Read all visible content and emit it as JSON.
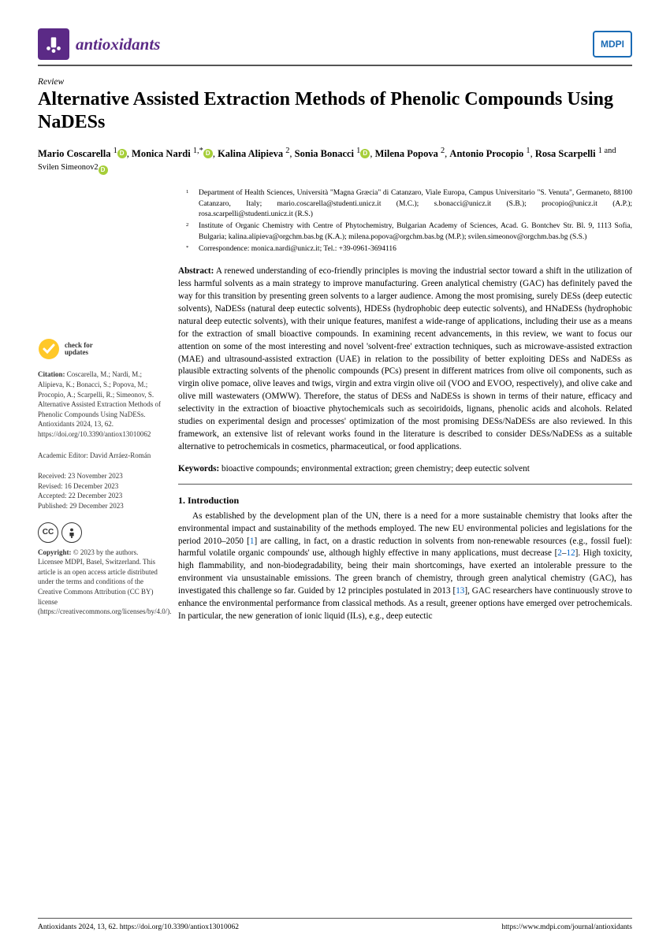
{
  "journal": "antioxidants",
  "publisher_logo": "MDPI",
  "article_type": "Review",
  "title": "Alternative Assisted Extraction Methods of Phenolic Compounds Using NaDESs",
  "authors_html": "Mario Coscarella|1|orcid|, Monica Nardi|1,*|orcid|, Kalina Alipieva|2|, Sonia Bonacci|1|orcid|, Milena Popova|2|, Antonio Procopio|1|, Rosa Scarpelli|1| and Svilen Simeonov|2|orcid",
  "affiliations": [
    {
      "sup": "1",
      "text": "Department of Health Sciences, Università \"Magna Græcia\" di Catanzaro, Viale Europa, Campus Universitario \"S. Venuta\", Germaneto, 88100 Catanzaro, Italy; mario.coscarella@studenti.unicz.it (M.C.); s.bonacci@unicz.it (S.B.); procopio@unicz.it (A.P.); rosa.scarpelli@studenti.unicz.it (R.S.)"
    },
    {
      "sup": "2",
      "text": "Institute of Organic Chemistry with Centre of Phytochemistry, Bulgarian Academy of Sciences, Acad. G. Bontchev Str. Bl. 9, 1113 Sofia, Bulgaria; kalina.alipieva@orgchm.bas.bg (K.A.); milena.popova@orgchm.bas.bg (M.P.); svilen.simeonov@orgchm.bas.bg (S.S.)"
    },
    {
      "sup": "*",
      "text": "Correspondence: monica.nardi@unicz.it; Tel.: +39-0961-3694116"
    }
  ],
  "abstract_label": "Abstract:",
  "abstract": "A renewed understanding of eco-friendly principles is moving the industrial sector toward a shift in the utilization of less harmful solvents as a main strategy to improve manufacturing. Green analytical chemistry (GAC) has definitely paved the way for this transition by presenting green solvents to a larger audience. Among the most promising, surely DESs (deep eutectic solvents), NaDESs (natural deep eutectic solvents), HDESs (hydrophobic deep eutectic solvents), and HNaDESs (hydrophobic natural deep eutectic solvents), with their unique features, manifest a wide-range of applications, including their use as a means for the extraction of small bioactive compounds. In examining recent advancements, in this review, we want to focus our attention on some of the most interesting and novel 'solvent-free' extraction techniques, such as microwave-assisted extraction (MAE) and ultrasound-assisted extraction (UAE) in relation to the possibility of better exploiting DESs and NaDESs as plausible extracting solvents of the phenolic compounds (PCs) present in different matrices from olive oil components, such as virgin olive pomace, olive leaves and twigs, virgin and extra virgin olive oil (VOO and EVOO, respectively), and olive cake and olive mill wastewaters (OMWW). Therefore, the status of DESs and NaDESs is shown in terms of their nature, efficacy and selectivity in the extraction of bioactive phytochemicals such as secoiridoids, lignans, phenolic acids and alcohols. Related studies on experimental design and processes' optimization of the most promising DESs/NaDESs are also reviewed. In this framework, an extensive list of relevant works found in the literature is described to consider DESs/NaDESs as a suitable alternative to petrochemicals in cosmetics, pharmaceutical, or food applications.",
  "keywords_label": "Keywords:",
  "keywords": "bioactive compounds; environmental extraction; green chemistry; deep eutectic solvent",
  "check_updates_line1": "check for",
  "check_updates_line2": "updates",
  "citation_label": "Citation:",
  "citation": "Coscarella, M.; Nardi, M.; Alipieva, K.; Bonacci, S.; Popova, M.; Procopio, A.; Scarpelli, R.; Simeonov, S. Alternative Assisted Extraction Methods of Phenolic Compounds Using NaDESs. Antioxidants 2024, 13, 62. https://doi.org/10.3390/antiox13010062",
  "editor_label": "Academic Editor:",
  "editor": "David Arráez-Román",
  "received": "Received: 23 November 2023",
  "revised": "Revised: 16 December 2023",
  "accepted": "Accepted: 22 December 2023",
  "published": "Published: 29 December 2023",
  "copyright_label": "Copyright:",
  "copyright": "© 2023 by the authors. Licensee MDPI, Basel, Switzerland. This article is an open access article distributed under the terms and conditions of the Creative Commons Attribution (CC BY) license (https://creativecommons.org/licenses/by/4.0/).",
  "section1_head": "1. Introduction",
  "section1_body": "As established by the development plan of the UN, there is a need for a more sustainable chemistry that looks after the environmental impact and sustainability of the methods employed. The new EU environmental policies and legislations for the period 2010–2050 [1] are calling, in fact, on a drastic reduction in solvents from non-renewable resources (e.g., fossil fuel): harmful volatile organic compounds' use, although highly effective in many applications, must decrease [2–12]. High toxicity, high flammability, and non-biodegradability, being their main shortcomings, have exerted an intolerable pressure to the environment via unsustainable emissions. The green branch of chemistry, through green analytical chemistry (GAC), has investigated this challenge so far. Guided by 12 principles postulated in 2013 [13], GAC researchers have continuously strove to enhance the environmental performance from classical methods. As a result, greener options have emerged over petrochemicals. In particular, the new generation of ionic liquid (ILs), e.g., deep eutectic",
  "footer_left": "Antioxidants 2024, 13, 62. https://doi.org/10.3390/antiox13010062",
  "footer_right": "https://www.mdpi.com/journal/antioxidants",
  "colors": {
    "brand_purple": "#5b2a86",
    "mdpi_blue": "#1a6bb5",
    "orcid_green": "#a6ce39",
    "link_blue": "#0066cc",
    "crossref_yellow": "#ffc828"
  }
}
